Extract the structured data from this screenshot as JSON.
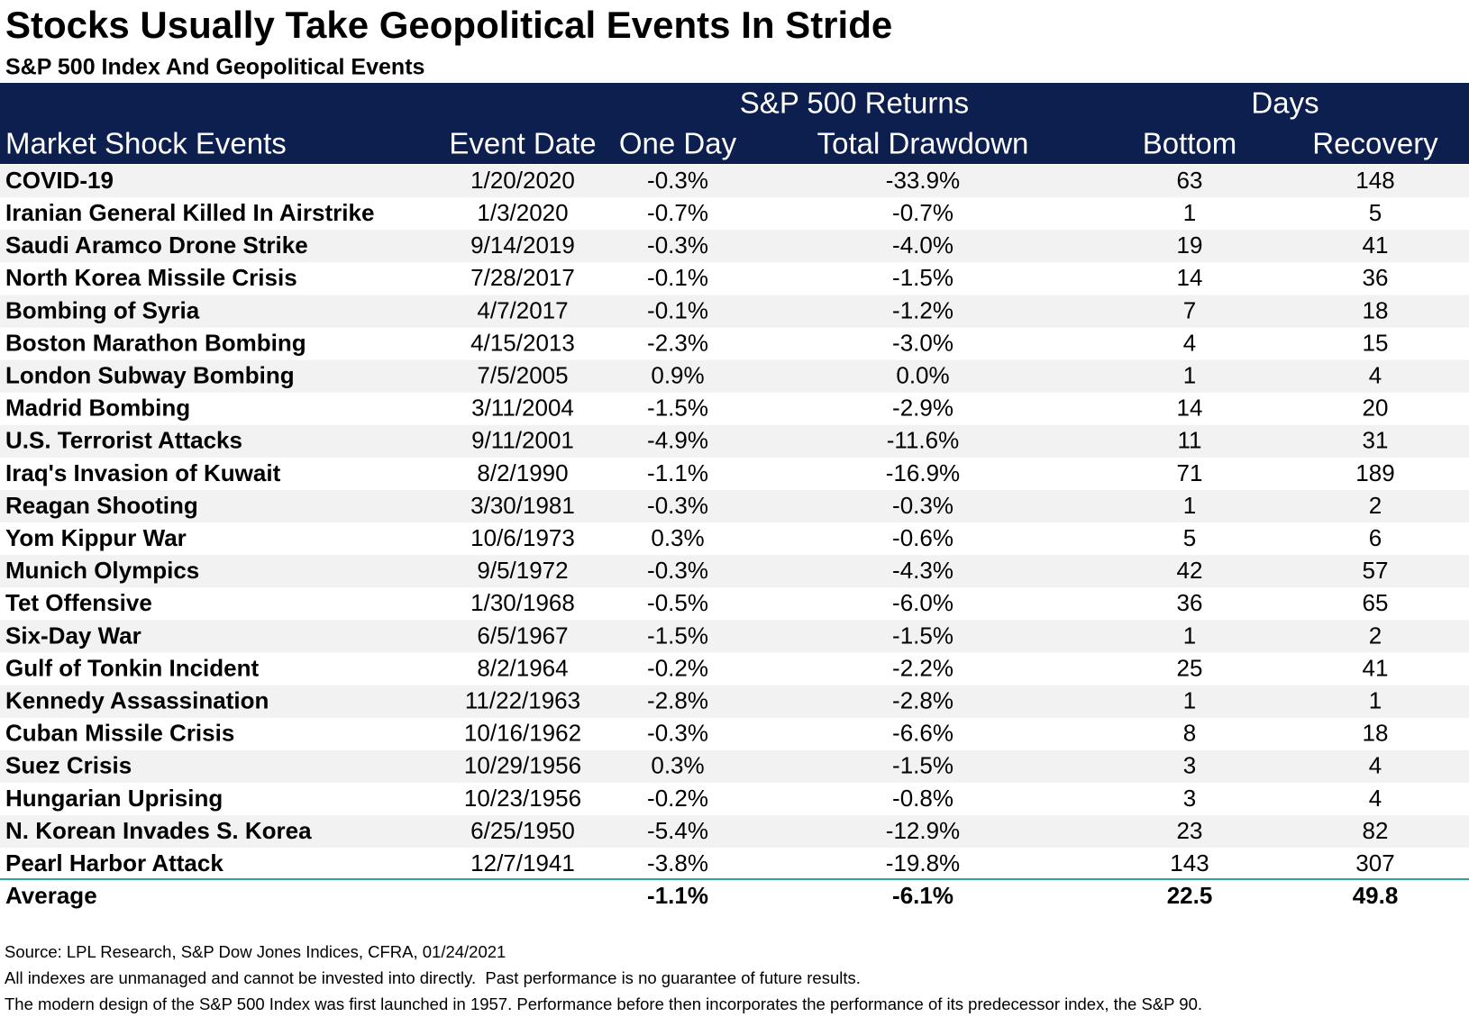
{
  "header": {
    "title": "Stocks Usually Take Geopolitical Events In Stride",
    "subtitle": "S&P 500 Index And Geopolitical Events"
  },
  "table": {
    "groups": [
      "S&P 500 Returns",
      "Days"
    ],
    "columns": [
      "Market Shock Events",
      "Event Date",
      "One Day",
      "Total Drawdown",
      "Bottom",
      "Recovery"
    ],
    "rows": [
      [
        "COVID-19",
        "1/20/2020",
        "-0.3%",
        "-33.9%",
        "63",
        "148"
      ],
      [
        "Iranian General Killed In Airstrike",
        "1/3/2020",
        "-0.7%",
        "-0.7%",
        "1",
        "5"
      ],
      [
        "Saudi Aramco Drone Strike",
        "9/14/2019",
        "-0.3%",
        "-4.0%",
        "19",
        "41"
      ],
      [
        "North Korea Missile Crisis",
        "7/28/2017",
        "-0.1%",
        "-1.5%",
        "14",
        "36"
      ],
      [
        "Bombing of Syria",
        "4/7/2017",
        "-0.1%",
        "-1.2%",
        "7",
        "18"
      ],
      [
        "Boston Marathon Bombing",
        "4/15/2013",
        "-2.3%",
        "-3.0%",
        "4",
        "15"
      ],
      [
        "London Subway Bombing",
        "7/5/2005",
        "0.9%",
        "0.0%",
        "1",
        "4"
      ],
      [
        "Madrid Bombing",
        "3/11/2004",
        "-1.5%",
        "-2.9%",
        "14",
        "20"
      ],
      [
        "U.S. Terrorist Attacks",
        "9/11/2001",
        "-4.9%",
        "-11.6%",
        "11",
        "31"
      ],
      [
        "Iraq's Invasion of Kuwait",
        "8/2/1990",
        "-1.1%",
        "-16.9%",
        "71",
        "189"
      ],
      [
        "Reagan Shooting",
        "3/30/1981",
        "-0.3%",
        "-0.3%",
        "1",
        "2"
      ],
      [
        "Yom Kippur War",
        "10/6/1973",
        "0.3%",
        "-0.6%",
        "5",
        "6"
      ],
      [
        "Munich Olympics",
        "9/5/1972",
        "-0.3%",
        "-4.3%",
        "42",
        "57"
      ],
      [
        "Tet Offensive",
        "1/30/1968",
        "-0.5%",
        "-6.0%",
        "36",
        "65"
      ],
      [
        "Six-Day War",
        "6/5/1967",
        "-1.5%",
        "-1.5%",
        "1",
        "2"
      ],
      [
        "Gulf of Tonkin Incident",
        "8/2/1964",
        "-0.2%",
        "-2.2%",
        "25",
        "41"
      ],
      [
        "Kennedy Assassination",
        "11/22/1963",
        "-2.8%",
        "-2.8%",
        "1",
        "1"
      ],
      [
        "Cuban Missile Crisis",
        "10/16/1962",
        "-0.3%",
        "-6.6%",
        "8",
        "18"
      ],
      [
        "Suez Crisis",
        "10/29/1956",
        "0.3%",
        "-1.5%",
        "3",
        "4"
      ],
      [
        "Hungarian Uprising",
        "10/23/1956",
        "-0.2%",
        "-0.8%",
        "3",
        "4"
      ],
      [
        "N. Korean Invades S. Korea",
        "6/25/1950",
        "-5.4%",
        "-12.9%",
        "23",
        "82"
      ],
      [
        "Pearl Harbor Attack",
        "12/7/1941",
        "-3.8%",
        "-19.8%",
        "143",
        "307"
      ]
    ],
    "average": {
      "label": "Average",
      "one_day": "-1.1%",
      "total_drawdown": "-6.1%",
      "bottom": "22.5",
      "recovery": "49.8"
    }
  },
  "footnotes": [
    "Source: LPL Research, S&P Dow Jones Indices, CFRA, 01/24/2021",
    "All indexes are unmanaged and cannot be invested into directly.  Past performance is no guarantee of future results.",
    "The modern design of the S&P 500 Index was first launched in 1957. Performance before then incorporates the performance of its predecessor index, the S&P 90."
  ]
}
